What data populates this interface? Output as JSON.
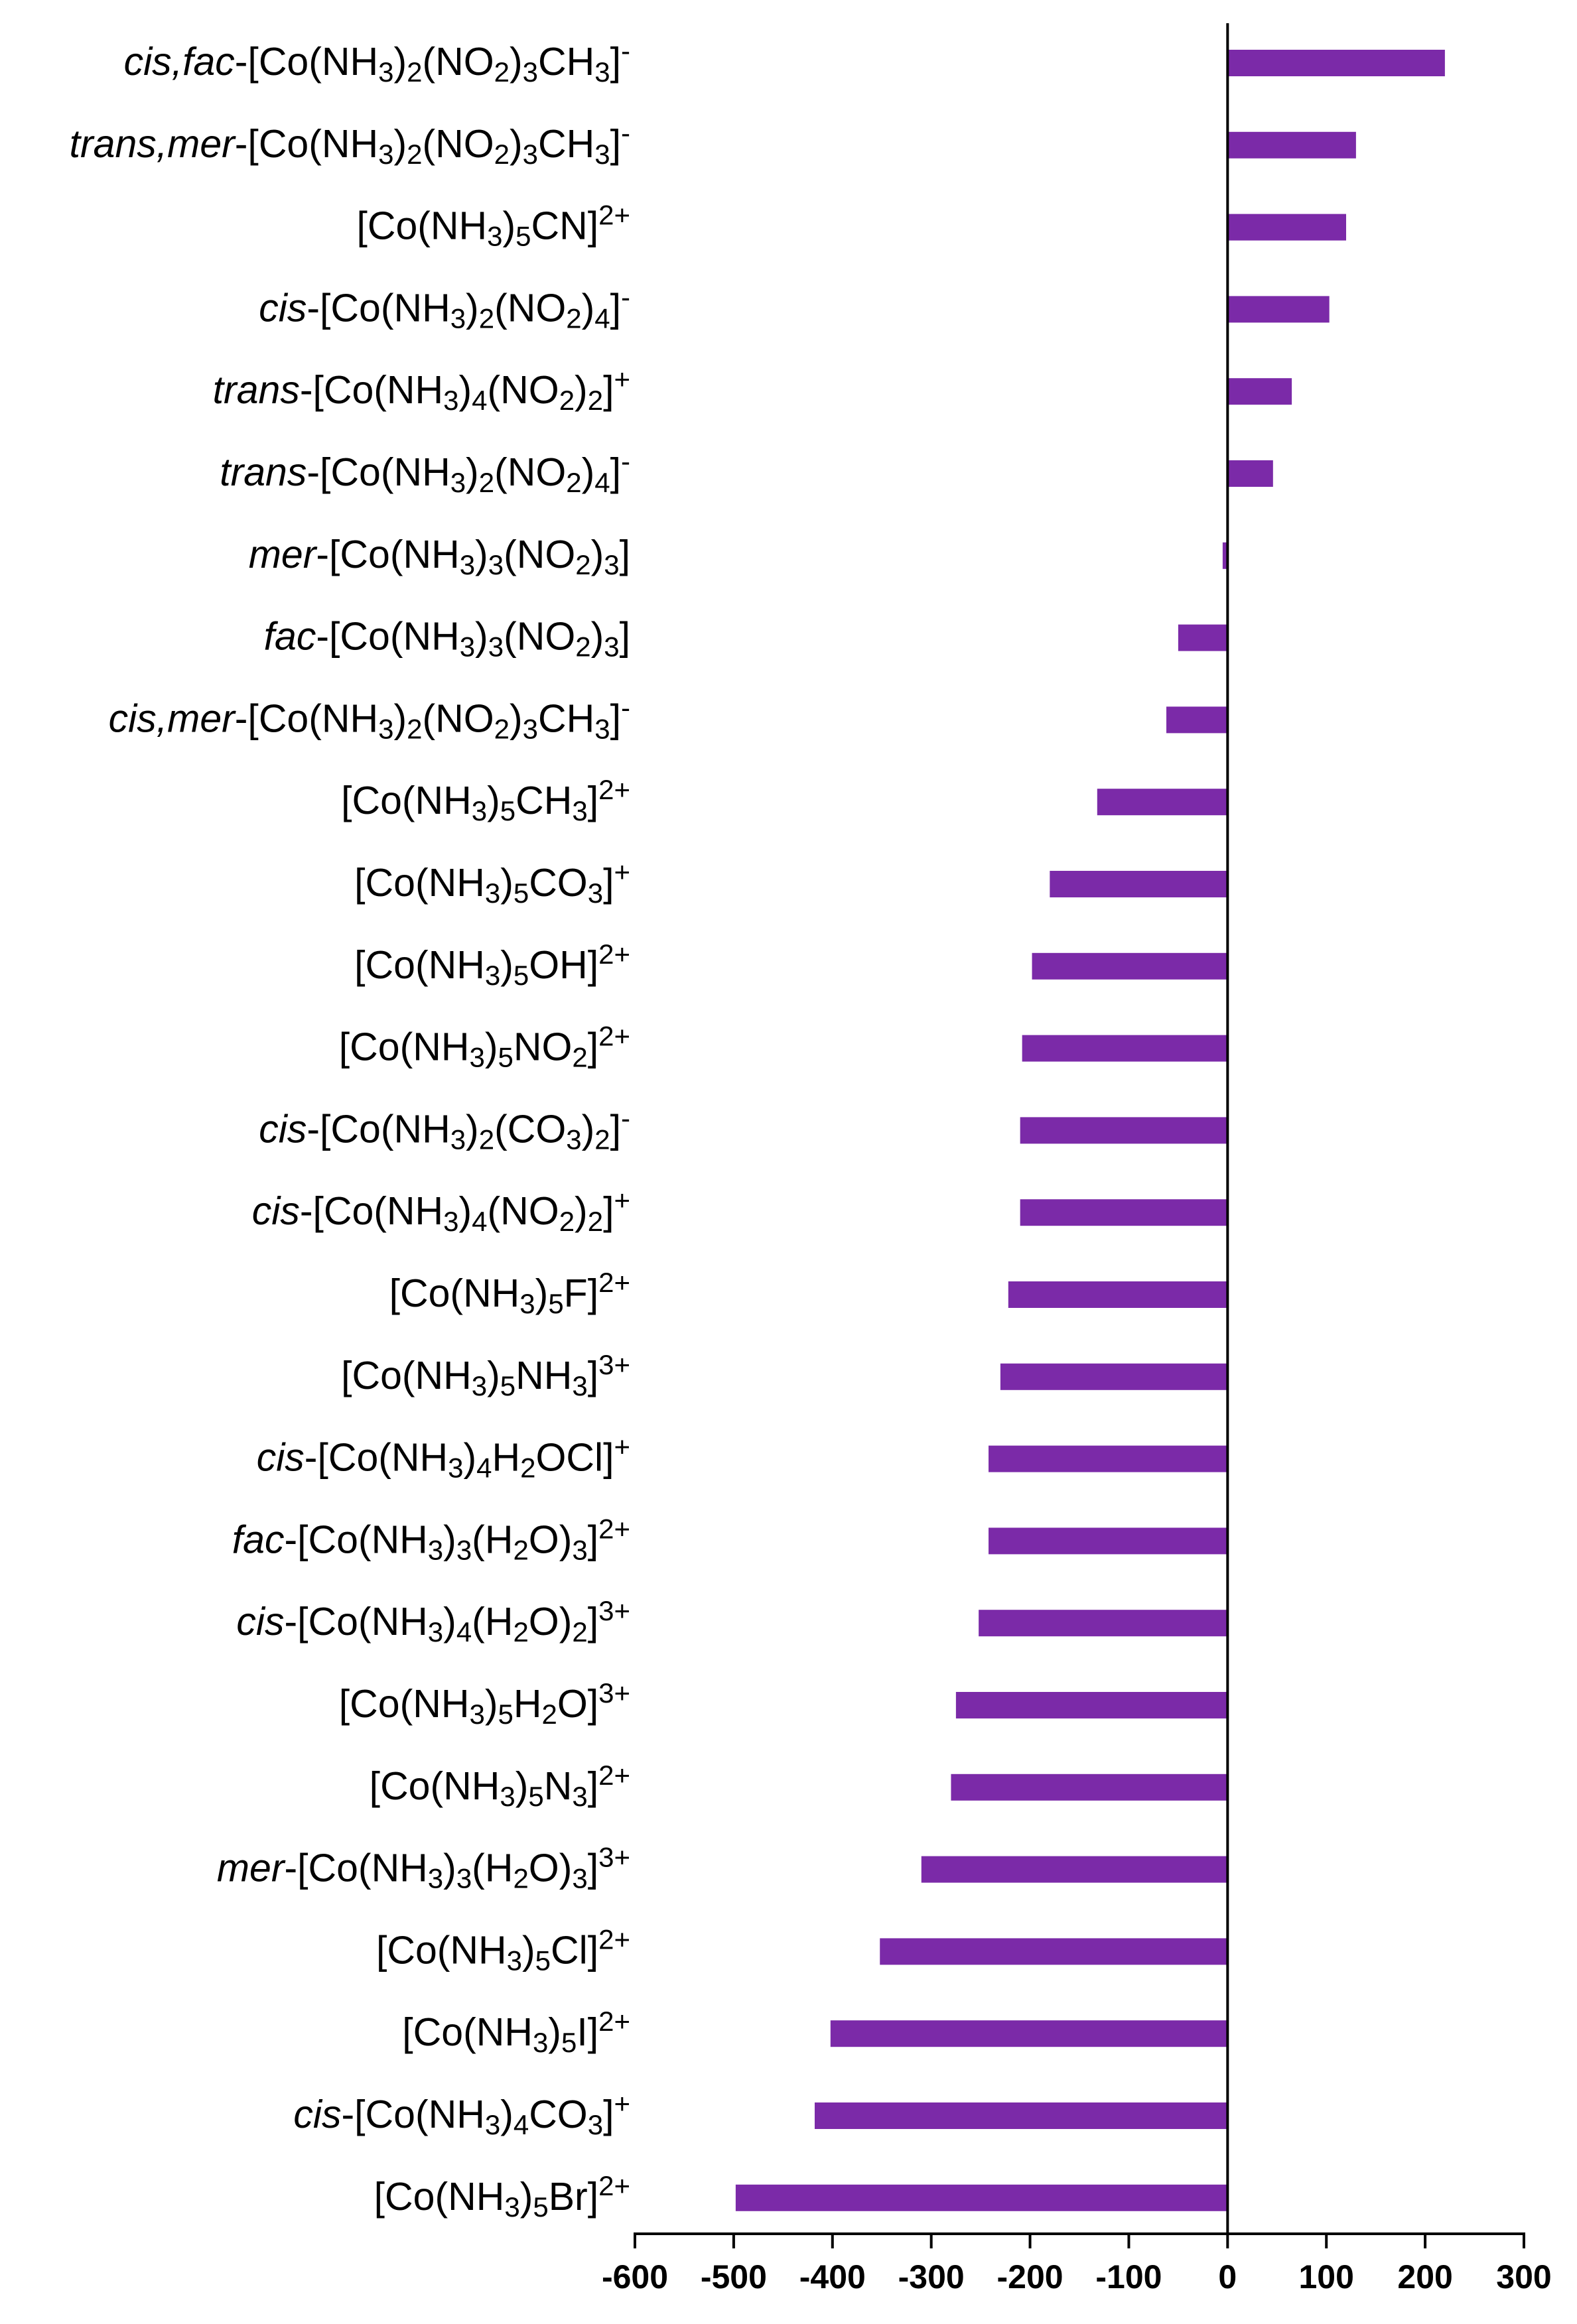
{
  "chart_data": {
    "type": "bar",
    "orientation": "horizontal",
    "title": "",
    "xlabel": "",
    "ylabel": "",
    "xlim": [
      -600,
      300
    ],
    "x_ticks": [
      -600,
      -500,
      -400,
      -300,
      -200,
      -100,
      0,
      100,
      200,
      300
    ],
    "grid": false,
    "legend": "none",
    "bar_color": "#7b2aa8",
    "categories": [
      {
        "runs": [
          {
            "t": "cis,fac",
            "s": "i"
          },
          {
            "t": "-[Co(NH"
          },
          {
            "t": "3",
            "s": "sub"
          },
          {
            "t": ")"
          },
          {
            "t": "2",
            "s": "sub"
          },
          {
            "t": "(NO"
          },
          {
            "t": "2",
            "s": "sub"
          },
          {
            "t": ")"
          },
          {
            "t": "3",
            "s": "sub"
          },
          {
            "t": "CH"
          },
          {
            "t": "3",
            "s": "sub"
          },
          {
            "t": "]"
          },
          {
            "t": "-",
            "s": "sup"
          }
        ]
      },
      {
        "runs": [
          {
            "t": "trans,mer",
            "s": "i"
          },
          {
            "t": "-[Co(NH"
          },
          {
            "t": "3",
            "s": "sub"
          },
          {
            "t": ")"
          },
          {
            "t": "2",
            "s": "sub"
          },
          {
            "t": "(NO"
          },
          {
            "t": "2",
            "s": "sub"
          },
          {
            "t": ")"
          },
          {
            "t": "3",
            "s": "sub"
          },
          {
            "t": "CH"
          },
          {
            "t": "3",
            "s": "sub"
          },
          {
            "t": "]"
          },
          {
            "t": "-",
            "s": "sup"
          }
        ]
      },
      {
        "runs": [
          {
            "t": "[Co(NH"
          },
          {
            "t": "3",
            "s": "sub"
          },
          {
            "t": ")"
          },
          {
            "t": "5",
            "s": "sub"
          },
          {
            "t": "CN]"
          },
          {
            "t": "2+",
            "s": "sup"
          }
        ]
      },
      {
        "runs": [
          {
            "t": "cis",
            "s": "i"
          },
          {
            "t": "-[Co(NH"
          },
          {
            "t": "3",
            "s": "sub"
          },
          {
            "t": ")"
          },
          {
            "t": "2",
            "s": "sub"
          },
          {
            "t": "(NO"
          },
          {
            "t": "2",
            "s": "sub"
          },
          {
            "t": ")"
          },
          {
            "t": "4",
            "s": "sub"
          },
          {
            "t": "]"
          },
          {
            "t": "-",
            "s": "sup"
          }
        ]
      },
      {
        "runs": [
          {
            "t": "trans",
            "s": "i"
          },
          {
            "t": "-[Co(NH"
          },
          {
            "t": "3",
            "s": "sub"
          },
          {
            "t": ")"
          },
          {
            "t": "4",
            "s": "sub"
          },
          {
            "t": "(NO"
          },
          {
            "t": "2",
            "s": "sub"
          },
          {
            "t": ")"
          },
          {
            "t": "2",
            "s": "sub"
          },
          {
            "t": "]"
          },
          {
            "t": "+",
            "s": "sup"
          }
        ]
      },
      {
        "runs": [
          {
            "t": "trans",
            "s": "i"
          },
          {
            "t": "-[Co(NH"
          },
          {
            "t": "3",
            "s": "sub"
          },
          {
            "t": ")"
          },
          {
            "t": "2",
            "s": "sub"
          },
          {
            "t": "(NO"
          },
          {
            "t": "2",
            "s": "sub"
          },
          {
            "t": ")"
          },
          {
            "t": "4",
            "s": "sub"
          },
          {
            "t": "]"
          },
          {
            "t": "-",
            "s": "sup"
          }
        ]
      },
      {
        "runs": [
          {
            "t": "mer",
            "s": "i"
          },
          {
            "t": "-[Co(NH"
          },
          {
            "t": "3",
            "s": "sub"
          },
          {
            "t": ")"
          },
          {
            "t": "3",
            "s": "sub"
          },
          {
            "t": "(NO"
          },
          {
            "t": "2",
            "s": "sub"
          },
          {
            "t": ")"
          },
          {
            "t": "3",
            "s": "sub"
          },
          {
            "t": "]"
          }
        ]
      },
      {
        "runs": [
          {
            "t": "fac",
            "s": "i"
          },
          {
            "t": "-[Co(NH"
          },
          {
            "t": "3",
            "s": "sub"
          },
          {
            "t": ")"
          },
          {
            "t": "3",
            "s": "sub"
          },
          {
            "t": "(NO"
          },
          {
            "t": "2",
            "s": "sub"
          },
          {
            "t": ")"
          },
          {
            "t": "3",
            "s": "sub"
          },
          {
            "t": "]"
          }
        ]
      },
      {
        "runs": [
          {
            "t": "cis,mer",
            "s": "i"
          },
          {
            "t": "-[Co(NH"
          },
          {
            "t": "3",
            "s": "sub"
          },
          {
            "t": ")"
          },
          {
            "t": "2",
            "s": "sub"
          },
          {
            "t": "(NO"
          },
          {
            "t": "2",
            "s": "sub"
          },
          {
            "t": ")"
          },
          {
            "t": "3",
            "s": "sub"
          },
          {
            "t": "CH"
          },
          {
            "t": "3",
            "s": "sub"
          },
          {
            "t": "]"
          },
          {
            "t": "-",
            "s": "sup"
          }
        ]
      },
      {
        "runs": [
          {
            "t": "[Co(NH"
          },
          {
            "t": "3",
            "s": "sub"
          },
          {
            "t": ")"
          },
          {
            "t": "5",
            "s": "sub"
          },
          {
            "t": "CH"
          },
          {
            "t": "3",
            "s": "sub"
          },
          {
            "t": "]"
          },
          {
            "t": "2+",
            "s": "sup"
          }
        ]
      },
      {
        "runs": [
          {
            "t": "[Co(NH"
          },
          {
            "t": "3",
            "s": "sub"
          },
          {
            "t": ")"
          },
          {
            "t": "5",
            "s": "sub"
          },
          {
            "t": "CO"
          },
          {
            "t": "3",
            "s": "sub"
          },
          {
            "t": "]"
          },
          {
            "t": "+",
            "s": "sup"
          }
        ]
      },
      {
        "runs": [
          {
            "t": "[Co(NH"
          },
          {
            "t": "3",
            "s": "sub"
          },
          {
            "t": ")"
          },
          {
            "t": "5",
            "s": "sub"
          },
          {
            "t": "OH]"
          },
          {
            "t": "2+",
            "s": "sup"
          }
        ]
      },
      {
        "runs": [
          {
            "t": "[Co(NH"
          },
          {
            "t": "3",
            "s": "sub"
          },
          {
            "t": ")"
          },
          {
            "t": "5",
            "s": "sub"
          },
          {
            "t": "NO"
          },
          {
            "t": "2",
            "s": "sub"
          },
          {
            "t": "]"
          },
          {
            "t": "2+",
            "s": "sup"
          }
        ]
      },
      {
        "runs": [
          {
            "t": "cis",
            "s": "i"
          },
          {
            "t": "-[Co(NH"
          },
          {
            "t": "3",
            "s": "sub"
          },
          {
            "t": ")"
          },
          {
            "t": "2",
            "s": "sub"
          },
          {
            "t": "(CO"
          },
          {
            "t": "3",
            "s": "sub"
          },
          {
            "t": ")"
          },
          {
            "t": "2",
            "s": "sub"
          },
          {
            "t": "]"
          },
          {
            "t": "-",
            "s": "sup"
          }
        ]
      },
      {
        "runs": [
          {
            "t": "cis",
            "s": "i"
          },
          {
            "t": "-[Co(NH"
          },
          {
            "t": "3",
            "s": "sub"
          },
          {
            "t": ")"
          },
          {
            "t": "4",
            "s": "sub"
          },
          {
            "t": "(NO"
          },
          {
            "t": "2",
            "s": "sub"
          },
          {
            "t": ")"
          },
          {
            "t": "2",
            "s": "sub"
          },
          {
            "t": "]"
          },
          {
            "t": "+",
            "s": "sup"
          }
        ]
      },
      {
        "runs": [
          {
            "t": "[Co(NH"
          },
          {
            "t": "3",
            "s": "sub"
          },
          {
            "t": ")"
          },
          {
            "t": "5",
            "s": "sub"
          },
          {
            "t": "F]"
          },
          {
            "t": "2+",
            "s": "sup"
          }
        ]
      },
      {
        "runs": [
          {
            "t": "[Co(NH"
          },
          {
            "t": "3",
            "s": "sub"
          },
          {
            "t": ")"
          },
          {
            "t": "5",
            "s": "sub"
          },
          {
            "t": "NH"
          },
          {
            "t": "3",
            "s": "sub"
          },
          {
            "t": "]"
          },
          {
            "t": "3+",
            "s": "sup"
          }
        ]
      },
      {
        "runs": [
          {
            "t": "cis",
            "s": "i"
          },
          {
            "t": "-[Co(NH"
          },
          {
            "t": "3",
            "s": "sub"
          },
          {
            "t": ")"
          },
          {
            "t": "4",
            "s": "sub"
          },
          {
            "t": "H"
          },
          {
            "t": "2",
            "s": "sub"
          },
          {
            "t": "OCl]"
          },
          {
            "t": "+",
            "s": "sup"
          }
        ]
      },
      {
        "runs": [
          {
            "t": "fac",
            "s": "i"
          },
          {
            "t": "-[Co(NH"
          },
          {
            "t": "3",
            "s": "sub"
          },
          {
            "t": ")"
          },
          {
            "t": "3",
            "s": "sub"
          },
          {
            "t": "(H"
          },
          {
            "t": "2",
            "s": "sub"
          },
          {
            "t": "O)"
          },
          {
            "t": "3",
            "s": "sub"
          },
          {
            "t": "]"
          },
          {
            "t": "2+",
            "s": "sup"
          }
        ]
      },
      {
        "runs": [
          {
            "t": "cis",
            "s": "i"
          },
          {
            "t": "-[Co(NH"
          },
          {
            "t": "3",
            "s": "sub"
          },
          {
            "t": ")"
          },
          {
            "t": "4",
            "s": "sub"
          },
          {
            "t": "(H"
          },
          {
            "t": "2",
            "s": "sub"
          },
          {
            "t": "O)"
          },
          {
            "t": "2",
            "s": "sub"
          },
          {
            "t": "]"
          },
          {
            "t": "3+",
            "s": "sup"
          }
        ]
      },
      {
        "runs": [
          {
            "t": "[Co(NH"
          },
          {
            "t": "3",
            "s": "sub"
          },
          {
            "t": ")"
          },
          {
            "t": "5",
            "s": "sub"
          },
          {
            "t": "H"
          },
          {
            "t": "2",
            "s": "sub"
          },
          {
            "t": "O]"
          },
          {
            "t": "3+",
            "s": "sup"
          }
        ]
      },
      {
        "runs": [
          {
            "t": "[Co(NH"
          },
          {
            "t": "3",
            "s": "sub"
          },
          {
            "t": ")"
          },
          {
            "t": "5",
            "s": "sub"
          },
          {
            "t": "N"
          },
          {
            "t": "3",
            "s": "sub"
          },
          {
            "t": "]"
          },
          {
            "t": "2+",
            "s": "sup"
          }
        ]
      },
      {
        "runs": [
          {
            "t": "mer",
            "s": "i"
          },
          {
            "t": "-[Co(NH"
          },
          {
            "t": "3",
            "s": "sub"
          },
          {
            "t": ")"
          },
          {
            "t": "3",
            "s": "sub"
          },
          {
            "t": "(H"
          },
          {
            "t": "2",
            "s": "sub"
          },
          {
            "t": "O)"
          },
          {
            "t": "3",
            "s": "sub"
          },
          {
            "t": "]"
          },
          {
            "t": "3+",
            "s": "sup"
          }
        ]
      },
      {
        "runs": [
          {
            "t": "[Co(NH"
          },
          {
            "t": "3",
            "s": "sub"
          },
          {
            "t": ")"
          },
          {
            "t": "5",
            "s": "sub"
          },
          {
            "t": "Cl]"
          },
          {
            "t": "2+",
            "s": "sup"
          }
        ]
      },
      {
        "runs": [
          {
            "t": "[Co(NH"
          },
          {
            "t": "3",
            "s": "sub"
          },
          {
            "t": ")"
          },
          {
            "t": "5",
            "s": "sub"
          },
          {
            "t": "I]"
          },
          {
            "t": "2+",
            "s": "sup"
          }
        ]
      },
      {
        "runs": [
          {
            "t": "cis",
            "s": "i"
          },
          {
            "t": "-[Co(NH"
          },
          {
            "t": "3",
            "s": "sub"
          },
          {
            "t": ")"
          },
          {
            "t": "4",
            "s": "sub"
          },
          {
            "t": "CO"
          },
          {
            "t": "3",
            "s": "sub"
          },
          {
            "t": "]"
          },
          {
            "t": "+",
            "s": "sup"
          }
        ]
      },
      {
        "runs": [
          {
            "t": "[Co(NH"
          },
          {
            "t": "3",
            "s": "sub"
          },
          {
            "t": ")"
          },
          {
            "t": "5",
            "s": "sub"
          },
          {
            "t": "Br]"
          },
          {
            "t": "2+",
            "s": "sup"
          }
        ]
      }
    ],
    "values": [
      220,
      130,
      120,
      103,
      65,
      46,
      -5,
      -50,
      -62,
      -132,
      -180,
      -198,
      -208,
      -210,
      -210,
      -222,
      -230,
      -242,
      -242,
      -252,
      -275,
      -280,
      -310,
      -352,
      -402,
      -418,
      -498
    ]
  }
}
